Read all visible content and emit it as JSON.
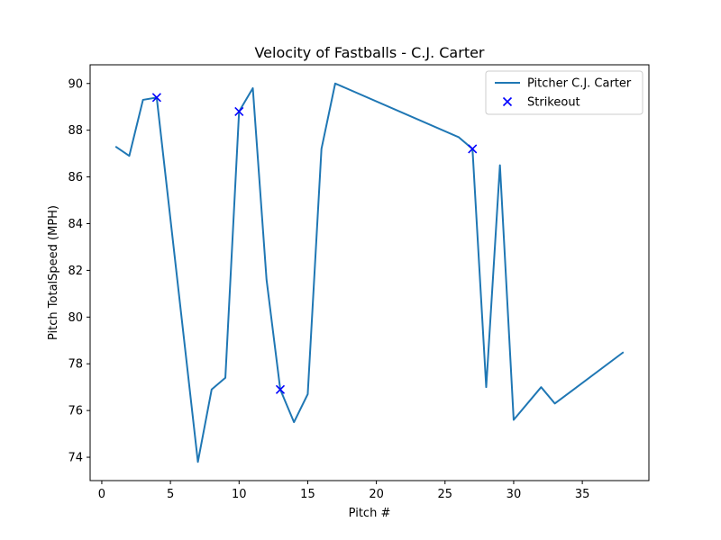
{
  "chart_data": {
    "type": "line",
    "title": "Velocity of Fastballs - C.J. Carter",
    "xlabel": "Pitch #",
    "ylabel": "Pitch TotalSpeed (MPH)",
    "xlim": [
      -0.85,
      39.85
    ],
    "ylim": [
      73.0,
      90.8
    ],
    "x_ticks": [
      0,
      5,
      10,
      15,
      20,
      25,
      30,
      35
    ],
    "y_ticks": [
      74,
      76,
      78,
      80,
      82,
      84,
      86,
      88,
      90
    ],
    "grid": false,
    "legend_position": "top-right",
    "series": [
      {
        "name": "Pitcher C.J. Carter",
        "kind": "line",
        "color": "#1f77b4",
        "x": [
          1,
          2,
          3,
          4,
          7,
          8,
          9,
          10,
          11,
          12,
          13,
          14,
          15,
          16,
          17,
          26,
          27,
          28,
          29,
          30,
          32,
          33,
          38
        ],
        "y": [
          87.3,
          86.9,
          89.3,
          89.4,
          73.8,
          76.9,
          77.4,
          88.8,
          89.8,
          81.6,
          76.9,
          75.5,
          76.7,
          87.2,
          90.0,
          87.7,
          87.2,
          77.0,
          86.5,
          75.6,
          77.0,
          76.3,
          78.5
        ]
      },
      {
        "name": "Strikeout",
        "kind": "scatter",
        "marker": "x",
        "color": "#0000ff",
        "x": [
          4,
          10,
          13,
          27
        ],
        "y": [
          89.4,
          88.8,
          76.9,
          87.2
        ]
      }
    ]
  }
}
